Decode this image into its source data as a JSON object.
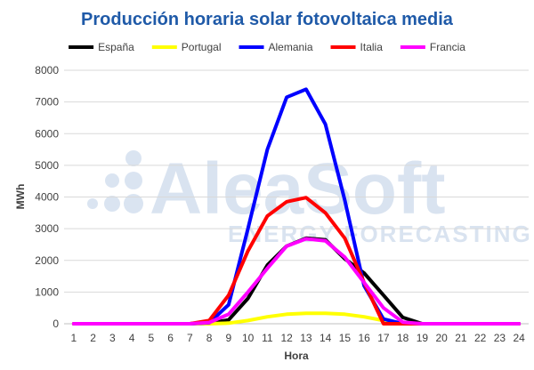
{
  "chart_data": {
    "type": "line",
    "title": "Producción horaria solar fotovoltaica media",
    "xlabel": "Hora",
    "ylabel": "MWh",
    "categories": [
      "1",
      "2",
      "3",
      "4",
      "5",
      "6",
      "7",
      "8",
      "9",
      "10",
      "11",
      "12",
      "13",
      "14",
      "15",
      "16",
      "17",
      "18",
      "19",
      "20",
      "21",
      "22",
      "23",
      "24"
    ],
    "ylim": [
      0,
      8000
    ],
    "yticks": [
      "0",
      "1000",
      "2000",
      "3000",
      "4000",
      "5000",
      "6000",
      "7000",
      "8000"
    ],
    "grid": true,
    "legend_position": "top",
    "title_color": "#1f5aa8",
    "watermark": {
      "brand": "AleaSoft",
      "tagline": "ENERGY FORECASTING"
    },
    "series": [
      {
        "name": "España",
        "color": "#000000",
        "values": [
          0,
          0,
          0,
          0,
          0,
          0,
          0,
          20,
          120,
          800,
          1850,
          2450,
          2700,
          2650,
          2050,
          1600,
          900,
          200,
          0,
          0,
          0,
          0,
          0,
          0
        ]
      },
      {
        "name": "Portugal",
        "color": "#ffff00",
        "values": [
          0,
          0,
          0,
          0,
          0,
          0,
          0,
          0,
          20,
          100,
          220,
          300,
          330,
          330,
          300,
          220,
          100,
          20,
          0,
          0,
          0,
          0,
          0,
          0
        ]
      },
      {
        "name": "Alemania",
        "color": "#0000ff",
        "values": [
          0,
          0,
          0,
          0,
          0,
          0,
          0,
          30,
          600,
          3000,
          5500,
          7150,
          7400,
          6300,
          3900,
          1200,
          150,
          0,
          0,
          0,
          0,
          0,
          0,
          0
        ]
      },
      {
        "name": "Italia",
        "color": "#ff0000",
        "values": [
          0,
          0,
          0,
          0,
          0,
          0,
          0,
          100,
          900,
          2300,
          3400,
          3850,
          3980,
          3500,
          2700,
          1300,
          0,
          0,
          0,
          0,
          0,
          0,
          0,
          0
        ]
      },
      {
        "name": "Francia",
        "color": "#ff00ff",
        "values": [
          0,
          0,
          0,
          0,
          0,
          0,
          0,
          40,
          300,
          1000,
          1750,
          2450,
          2680,
          2620,
          2100,
          1300,
          500,
          50,
          0,
          0,
          0,
          0,
          0,
          0
        ]
      }
    ]
  }
}
